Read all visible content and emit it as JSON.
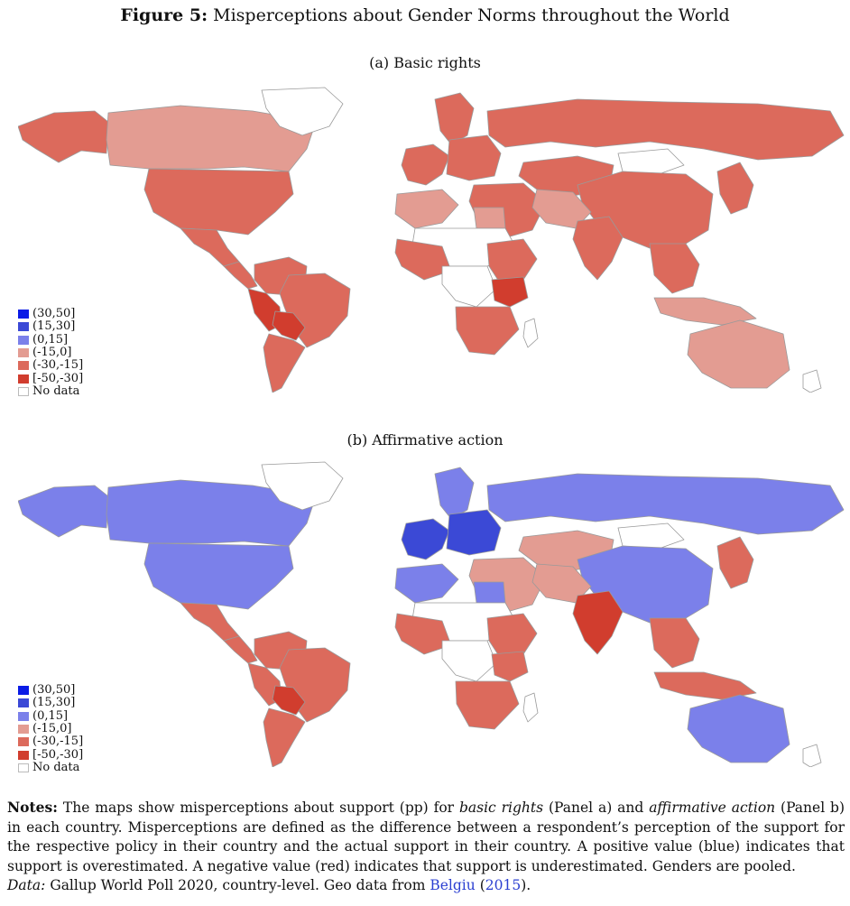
{
  "figure": {
    "label": "Figure 5:",
    "title": "Misperceptions about Gender Norms throughout the World"
  },
  "legend": {
    "entries": [
      {
        "label": "(30,50]",
        "color": "#0a1be6"
      },
      {
        "label": "(15,30]",
        "color": "#3b49d6"
      },
      {
        "label": "(0,15]",
        "color": "#7b80ea"
      },
      {
        "label": "(-15,0]",
        "color": "#e39c92"
      },
      {
        "label": "(-30,-15]",
        "color": "#dc6a5c"
      },
      {
        "label": "[-50,-30]",
        "color": "#d13d2e"
      },
      {
        "label": "No data",
        "color": "#ffffff"
      }
    ]
  },
  "panels": [
    {
      "title": "(a) Basic rights",
      "countries": {
        "alaska": "#dc6a5c",
        "canada": "#e39c92",
        "usa": "#dc6a5c",
        "mexico": "#dc6a5c",
        "central-america": "#dc6a5c",
        "greenland": "#ffffff",
        "colombia-venezuela": "#dc6a5c",
        "brazil": "#dc6a5c",
        "peru": "#d13d2e",
        "bolivia": "#d13d2e",
        "argentina-chile": "#dc6a5c",
        "western-europe": "#dc6a5c",
        "scandinavia": "#dc6a5c",
        "eastern-europe": "#dc6a5c",
        "russia": "#dc6a5c",
        "kazakhstan-central-asia": "#dc6a5c",
        "mongolia": "#ffffff",
        "china": "#dc6a5c",
        "middle-east": "#dc6a5c",
        "iran-afghanistan": "#e39c92",
        "india": "#dc6a5c",
        "southeast-asia": "#dc6a5c",
        "indonesia": "#e39c92",
        "japan-korea": "#dc6a5c",
        "australia": "#e39c92",
        "new-zealand": "#ffffff",
        "maghreb": "#e39c92",
        "egypt": "#e39c92",
        "sahara": "#ffffff",
        "west-africa": "#dc6a5c",
        "central-africa": "#ffffff",
        "east-africa": "#dc6a5c",
        "tanzania": "#d13d2e",
        "southern-africa": "#dc6a5c",
        "madagascar": "#ffffff"
      }
    },
    {
      "title": "(b) Affirmative action",
      "countries": {
        "alaska": "#7b80ea",
        "canada": "#7b80ea",
        "usa": "#7b80ea",
        "mexico": "#dc6a5c",
        "central-america": "#dc6a5c",
        "greenland": "#ffffff",
        "colombia-venezuela": "#dc6a5c",
        "brazil": "#dc6a5c",
        "peru": "#dc6a5c",
        "bolivia": "#d13d2e",
        "argentina-chile": "#dc6a5c",
        "western-europe": "#3b49d6",
        "scandinavia": "#7b80ea",
        "eastern-europe": "#3b49d6",
        "russia": "#7b80ea",
        "kazakhstan-central-asia": "#e39c92",
        "mongolia": "#ffffff",
        "china": "#7b80ea",
        "middle-east": "#e39c92",
        "iran-afghanistan": "#e39c92",
        "india": "#d13d2e",
        "southeast-asia": "#dc6a5c",
        "indonesia": "#dc6a5c",
        "japan-korea": "#dc6a5c",
        "australia": "#7b80ea",
        "new-zealand": "#ffffff",
        "maghreb": "#7b80ea",
        "egypt": "#7b80ea",
        "sahara": "#ffffff",
        "west-africa": "#dc6a5c",
        "central-africa": "#ffffff",
        "east-africa": "#dc6a5c",
        "tanzania": "#dc6a5c",
        "southern-africa": "#dc6a5c",
        "madagascar": "#ffffff"
      }
    }
  ],
  "notes": {
    "label": "Notes:",
    "text1": "The maps show misperceptions about support (pp) for",
    "term1": "basic rights",
    "text2": "(Panel a) and",
    "term2": "affirmative action",
    "text3": "(Panel b) in each country. Misperceptions are defined as the difference between a respondent’s perception of the support for the respective policy in their country and the actual support in their country. A positive value (blue) indicates that support is overestimated. A negative value (red) indicates that support is underestimated. Genders are pooled.",
    "data_label": "Data:",
    "data_text": "Gallup World Poll 2020, country-level. Geo data from",
    "source_author": "Belgiu",
    "source_year_open": "(",
    "source_year": "2015",
    "source_year_close": ")."
  }
}
